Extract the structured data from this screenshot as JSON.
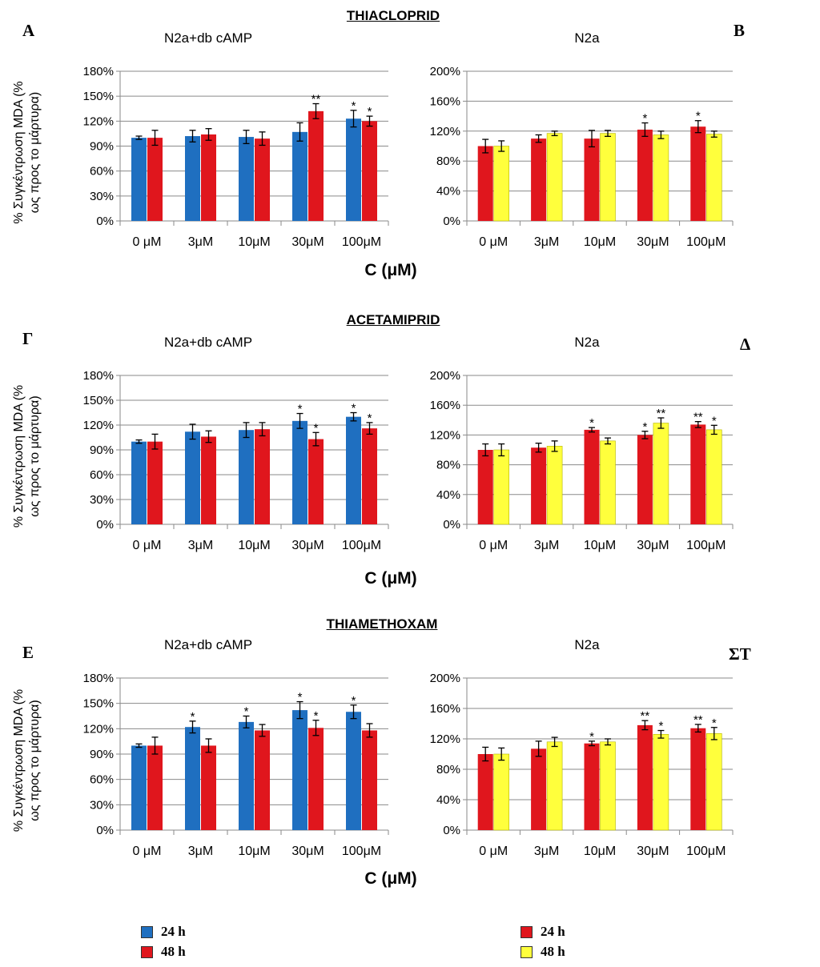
{
  "sections": [
    {
      "title": "THIACLOPRID"
    },
    {
      "title": "ACETAMIPRID"
    },
    {
      "title": "THIAMETHOXAM"
    }
  ],
  "panel_letters": [
    "A",
    "B",
    "Γ",
    "Δ",
    "E",
    "ΣT"
  ],
  "y_axis_label_line1": "% Συγκέντρωση MDA (%",
  "y_axis_label_line2": "ως προς το μάρτυρα)",
  "x_axis_label": "C (μM)",
  "legends": {
    "left": [
      {
        "label": "24 h",
        "color": "#1f6fc0"
      },
      {
        "label": "48 h",
        "color": "#e0161d"
      }
    ],
    "right": [
      {
        "label": "24 h",
        "color": "#e0161d"
      },
      {
        "label": "48 h",
        "color": "#ffff3c"
      }
    ]
  },
  "chart_data": [
    {
      "type": "bar",
      "section": "THIACLOPRID",
      "panel": "A",
      "title": "N2a+db cAMP",
      "categories": [
        "0 μM",
        "3μM",
        "10μM",
        "30μM",
        "100μM"
      ],
      "ylim": [
        0,
        180
      ],
      "yticks": [
        0,
        30,
        60,
        90,
        120,
        150,
        180
      ],
      "ytick_labels": [
        "0%",
        "30%",
        "60%",
        "90%",
        "120%",
        "150%",
        "180%"
      ],
      "series": [
        {
          "name": "24 h",
          "color": "#1f6fc0",
          "values": [
            100,
            102,
            101,
            107,
            123
          ],
          "errors": [
            2,
            7,
            8,
            11,
            10
          ],
          "sig": [
            "",
            "",
            "",
            "",
            "*"
          ]
        },
        {
          "name": "48 h",
          "color": "#e0161d",
          "values": [
            100,
            104,
            99,
            132,
            120
          ],
          "errors": [
            9,
            7,
            8,
            9,
            6
          ],
          "sig": [
            "",
            "",
            "",
            "**",
            "*"
          ]
        }
      ]
    },
    {
      "type": "bar",
      "section": "THIACLOPRID",
      "panel": "B",
      "title": "N2a",
      "categories": [
        "0 μM",
        "3μM",
        "10μM",
        "30μM",
        "100μM"
      ],
      "ylim": [
        0,
        200
      ],
      "yticks": [
        0,
        40,
        80,
        120,
        160,
        200
      ],
      "ytick_labels": [
        "0%",
        "40%",
        "80%",
        "120%",
        "160%",
        "200%"
      ],
      "series": [
        {
          "name": "24 h",
          "color": "#e0161d",
          "values": [
            100,
            110,
            110,
            122,
            126
          ],
          "errors": [
            9,
            5,
            11,
            9,
            8
          ],
          "sig": [
            "",
            "",
            "",
            "*",
            "*"
          ]
        },
        {
          "name": "48 h",
          "color": "#ffff3c",
          "values": [
            100,
            117,
            117,
            115,
            116
          ],
          "errors": [
            7,
            3,
            4,
            5,
            4
          ],
          "sig": [
            "",
            "",
            "",
            "",
            ""
          ]
        }
      ]
    },
    {
      "type": "bar",
      "section": "ACETAMIPRID",
      "panel": "Γ",
      "title": "N2a+db cAMP",
      "categories": [
        "0 μM",
        "3μM",
        "10μM",
        "30μM",
        "100μM"
      ],
      "ylim": [
        0,
        180
      ],
      "yticks": [
        0,
        30,
        60,
        90,
        120,
        150,
        180
      ],
      "ytick_labels": [
        "0%",
        "30%",
        "60%",
        "90%",
        "120%",
        "150%",
        "180%"
      ],
      "series": [
        {
          "name": "24 h",
          "color": "#1f6fc0",
          "values": [
            100,
            112,
            114,
            125,
            130
          ],
          "errors": [
            2,
            9,
            9,
            9,
            5
          ],
          "sig": [
            "",
            "",
            "",
            "*",
            "*"
          ]
        },
        {
          "name": "48 h",
          "color": "#e0161d",
          "values": [
            100,
            106,
            115,
            103,
            116
          ],
          "errors": [
            9,
            7,
            8,
            8,
            7
          ],
          "sig": [
            "",
            "",
            "",
            "*",
            "*"
          ]
        }
      ]
    },
    {
      "type": "bar",
      "section": "ACETAMIPRID",
      "panel": "Δ",
      "title": "N2a",
      "categories": [
        "0 μM",
        "3μM",
        "10μM",
        "30μM",
        "100μM"
      ],
      "ylim": [
        0,
        200
      ],
      "yticks": [
        0,
        40,
        80,
        120,
        160,
        200
      ],
      "ytick_labels": [
        "0%",
        "40%",
        "80%",
        "120%",
        "160%",
        "200%"
      ],
      "series": [
        {
          "name": "24 h",
          "color": "#e0161d",
          "values": [
            100,
            103,
            127,
            120,
            134
          ],
          "errors": [
            8,
            6,
            3,
            5,
            4
          ],
          "sig": [
            "",
            "",
            "*",
            "*",
            "**"
          ]
        },
        {
          "name": "48 h",
          "color": "#ffff3c",
          "values": [
            100,
            105,
            112,
            136,
            127
          ],
          "errors": [
            8,
            7,
            4,
            7,
            6
          ],
          "sig": [
            "",
            "",
            "",
            "**",
            "*"
          ]
        }
      ]
    },
    {
      "type": "bar",
      "section": "THIAMETHOXAM",
      "panel": "E",
      "title": "N2a+db cAMP",
      "categories": [
        "0 μM",
        "3μM",
        "10μM",
        "30μM",
        "100μM"
      ],
      "ylim": [
        0,
        180
      ],
      "yticks": [
        0,
        30,
        60,
        90,
        120,
        150,
        180
      ],
      "ytick_labels": [
        "0%",
        "30%",
        "60%",
        "90%",
        "120%",
        "150%",
        "180%"
      ],
      "series": [
        {
          "name": "24 h",
          "color": "#1f6fc0",
          "values": [
            100,
            122,
            128,
            142,
            140
          ],
          "errors": [
            2,
            7,
            7,
            10,
            8
          ],
          "sig": [
            "",
            "*",
            "*",
            "*",
            "*"
          ]
        },
        {
          "name": "48 h",
          "color": "#e0161d",
          "values": [
            100,
            100,
            118,
            121,
            118
          ],
          "errors": [
            10,
            8,
            7,
            9,
            8
          ],
          "sig": [
            "",
            "",
            "",
            "*",
            ""
          ]
        }
      ]
    },
    {
      "type": "bar",
      "section": "THIAMETHOXAM",
      "panel": "ΣT",
      "title": "N2a",
      "categories": [
        "0 μM",
        "3μM",
        "10μM",
        "30μM",
        "100μM"
      ],
      "ylim": [
        0,
        200
      ],
      "yticks": [
        0,
        40,
        80,
        120,
        160,
        200
      ],
      "ytick_labels": [
        "0%",
        "40%",
        "80%",
        "120%",
        "160%",
        "200%"
      ],
      "series": [
        {
          "name": "24 h",
          "color": "#e0161d",
          "values": [
            100,
            107,
            114,
            138,
            134
          ],
          "errors": [
            9,
            10,
            3,
            6,
            5
          ],
          "sig": [
            "",
            "",
            "*",
            "**",
            "**"
          ]
        },
        {
          "name": "48 h",
          "color": "#ffff3c",
          "values": [
            100,
            116,
            116,
            126,
            127
          ],
          "errors": [
            8,
            6,
            4,
            5,
            8
          ],
          "sig": [
            "",
            "",
            "",
            "*",
            "*"
          ]
        }
      ]
    }
  ]
}
